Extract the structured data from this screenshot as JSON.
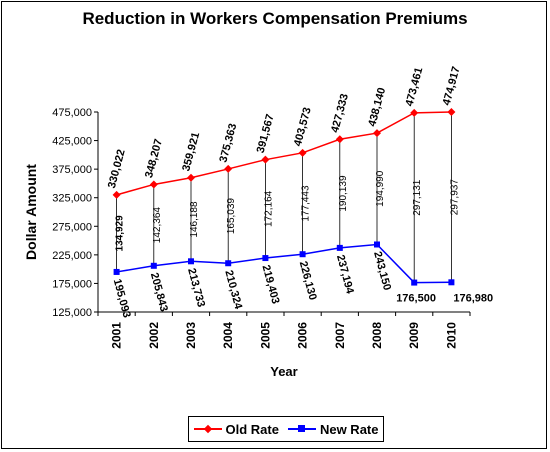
{
  "chart_data": {
    "type": "line",
    "title": "Reduction in Workers Compensation Premiums",
    "xlabel": "Year",
    "ylabel": "Dollar Amount",
    "categories": [
      "2001",
      "2002",
      "2003",
      "2004",
      "2005",
      "2006",
      "2007",
      "2008",
      "2009",
      "2010"
    ],
    "ylim": [
      125000,
      475000
    ],
    "yticks": [
      125000,
      175000,
      225000,
      275000,
      325000,
      375000,
      425000,
      475000
    ],
    "ytick_labels": [
      "125,000",
      "175,000",
      "225,000",
      "275,000",
      "325,000",
      "375,000",
      "425,000",
      "475,000"
    ],
    "grid": false,
    "legend_position": "bottom",
    "series": [
      {
        "name": "Old Rate",
        "color": "#ff0000",
        "marker": "diamond",
        "values": [
          330022,
          348207,
          359921,
          375363,
          391567,
          403573,
          427333,
          438140,
          473461,
          474917
        ],
        "labels": [
          "330,022",
          "348,207",
          "359,921",
          "375,363",
          "391,567",
          "403,573",
          "427,333",
          "438,140",
          "473,461",
          "474,917"
        ]
      },
      {
        "name": "New Rate",
        "color": "#0000ff",
        "marker": "square",
        "values": [
          195093,
          205843,
          213733,
          210324,
          219403,
          226130,
          237194,
          243150,
          176500,
          176980
        ],
        "labels": [
          "195,093",
          "205,843",
          "213,733",
          "210,324",
          "219,403",
          "226,130",
          "237,194",
          "243,150",
          "176,500",
          "176,980"
        ]
      }
    ],
    "differences": [
      134929,
      142364,
      146188,
      165039,
      172164,
      177443,
      190139,
      194990,
      297131,
      297937
    ],
    "difference_labels": [
      "134,929",
      "142,364",
      "146,188",
      "165,039",
      "172,164",
      "177,443",
      "190,139",
      "194,990",
      "297,131",
      "297,937"
    ]
  }
}
